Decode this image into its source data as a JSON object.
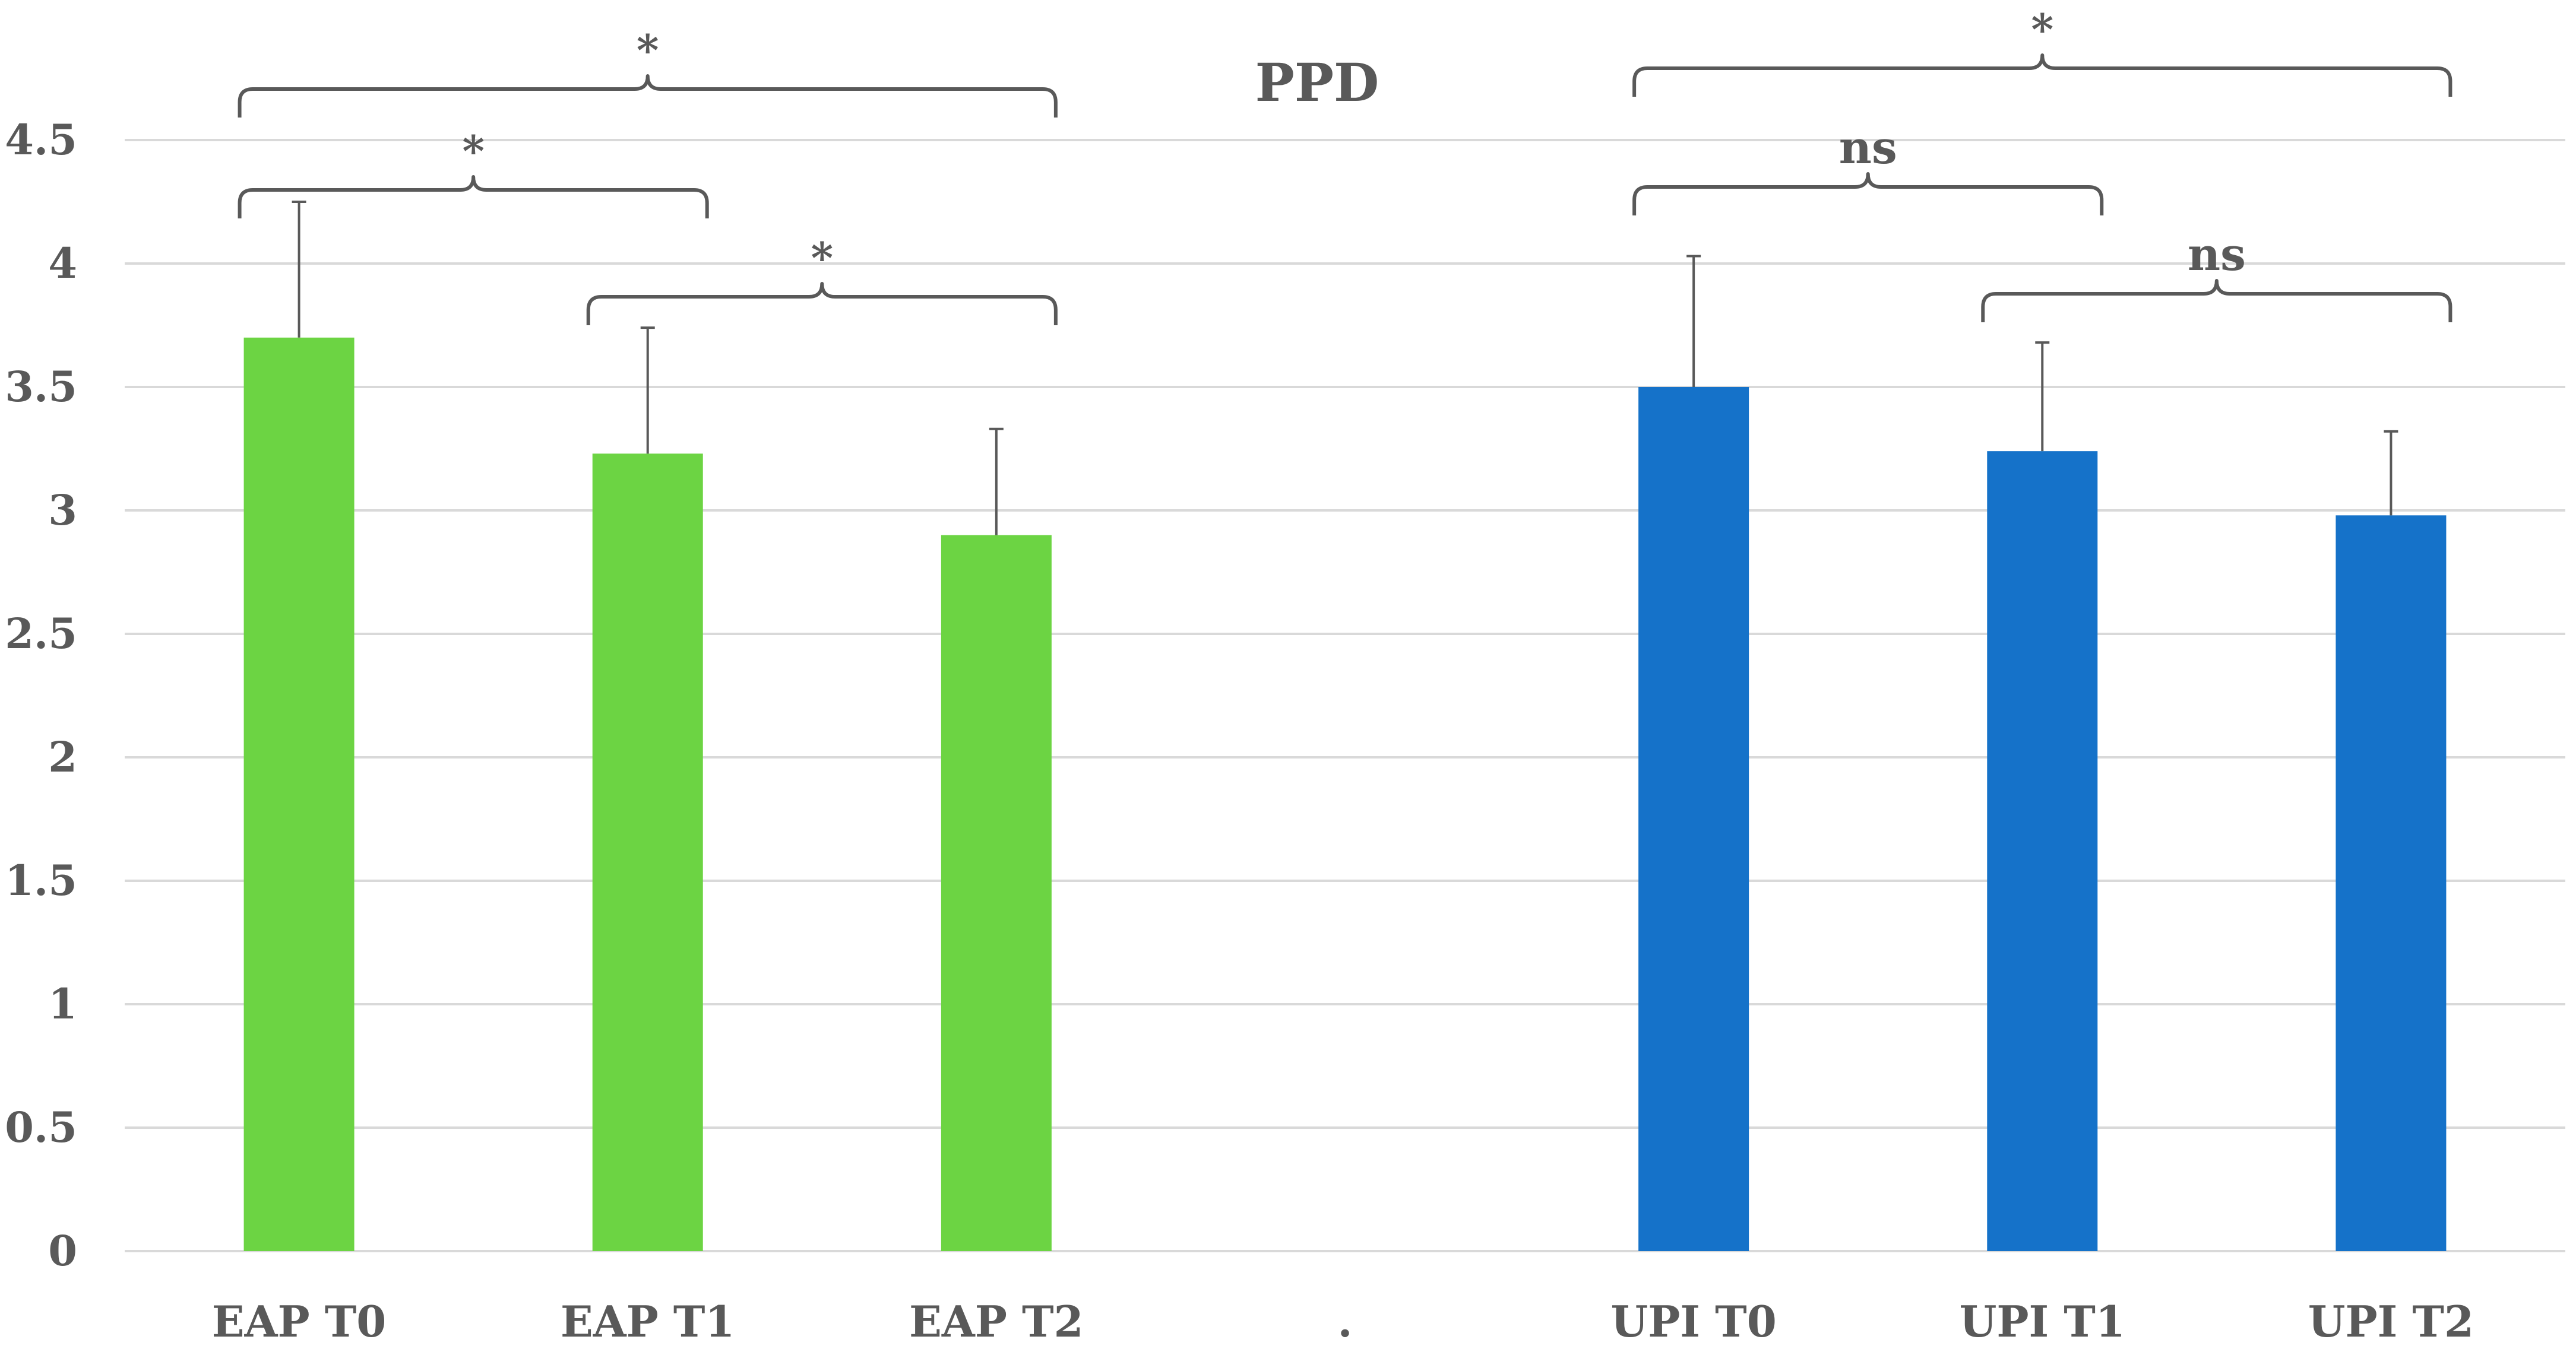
{
  "chart_data": {
    "type": "bar",
    "title": "PPD",
    "xlabel": "",
    "ylabel": "",
    "ylim": [
      0,
      4.5
    ],
    "yticks": [
      "0",
      "0.5",
      "1",
      "1.5",
      "2",
      "2.5",
      "3",
      "3.5",
      "4",
      "4.5"
    ],
    "grid": true,
    "categories": [
      "EAP T0",
      "EAP T1",
      "EAP T2",
      ".",
      "UPI T0",
      "UPI T1",
      "UPI T2"
    ],
    "values": [
      3.7,
      3.23,
      2.9,
      null,
      3.5,
      3.24,
      2.98
    ],
    "error_plus": [
      0.55,
      0.51,
      0.43,
      null,
      0.53,
      0.44,
      0.34
    ],
    "bar_colors": [
      "#6CD443",
      "#6CD443",
      "#6CD443",
      null,
      "#1572C9",
      "#1572C9",
      "#1572C9"
    ],
    "significance": [
      {
        "from": 0,
        "to": 2,
        "label": "*"
      },
      {
        "from": 0,
        "to": 1,
        "label": "*"
      },
      {
        "from": 1,
        "to": 2,
        "label": "*"
      },
      {
        "from": 4,
        "to": 6,
        "label": "*"
      },
      {
        "from": 4,
        "to": 5,
        "label": "ns"
      },
      {
        "from": 5,
        "to": 6,
        "label": "ns"
      }
    ]
  },
  "colors": {
    "eap": "#6CD443",
    "upi": "#1572C9",
    "text": "#595959",
    "grid": "#D9D9D9"
  }
}
